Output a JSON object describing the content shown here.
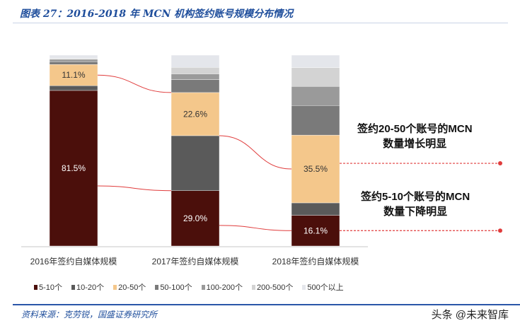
{
  "title": "图表 27：2016-2018 年 MCN 机构签约账号规模分布情况",
  "source": "资料来源：克劳锐，国盛证券研究所",
  "watermark": "头条 @未来智库",
  "annotations": {
    "growth": [
      "签约20-50个账号的MCN",
      "数量增长明显"
    ],
    "decline": [
      "签约5-10个账号的MCN",
      "数量下降明显"
    ]
  },
  "chart_data": {
    "type": "bar",
    "stacked": true,
    "unit": "%",
    "categories": [
      "2016年签约自媒体规模",
      "2017年签约自媒体规模",
      "2018年签约自媒体规模"
    ],
    "series": [
      {
        "name": "5-10个",
        "color": "#4b0f0b",
        "values": [
          81.5,
          29.0,
          16.1
        ],
        "labeled": true
      },
      {
        "name": "10-20个",
        "color": "#5a5a5a",
        "values": [
          2.5,
          28.8,
          6.5
        ],
        "labeled": false
      },
      {
        "name": "20-50个",
        "color": "#f4c78b",
        "values": [
          11.1,
          22.6,
          35.5
        ],
        "labeled": true
      },
      {
        "name": "50-100个",
        "color": "#7a7a7a",
        "values": [
          1.5,
          6.8,
          15.5
        ],
        "labeled": false
      },
      {
        "name": "100-200个",
        "color": "#9a9a9a",
        "values": [
          1.2,
          3.0,
          10.0
        ],
        "labeled": false
      },
      {
        "name": "200-500个",
        "color": "#d3d3d3",
        "values": [
          0.5,
          3.4,
          9.9
        ],
        "labeled": false
      },
      {
        "name": "500个以上",
        "color": "#e4e6eb",
        "values": [
          1.7,
          6.4,
          6.5
        ],
        "labeled": false
      }
    ],
    "ylim": [
      0,
      100
    ],
    "grid": false,
    "legend": "bottom",
    "connector_color": "#e03c3c"
  }
}
